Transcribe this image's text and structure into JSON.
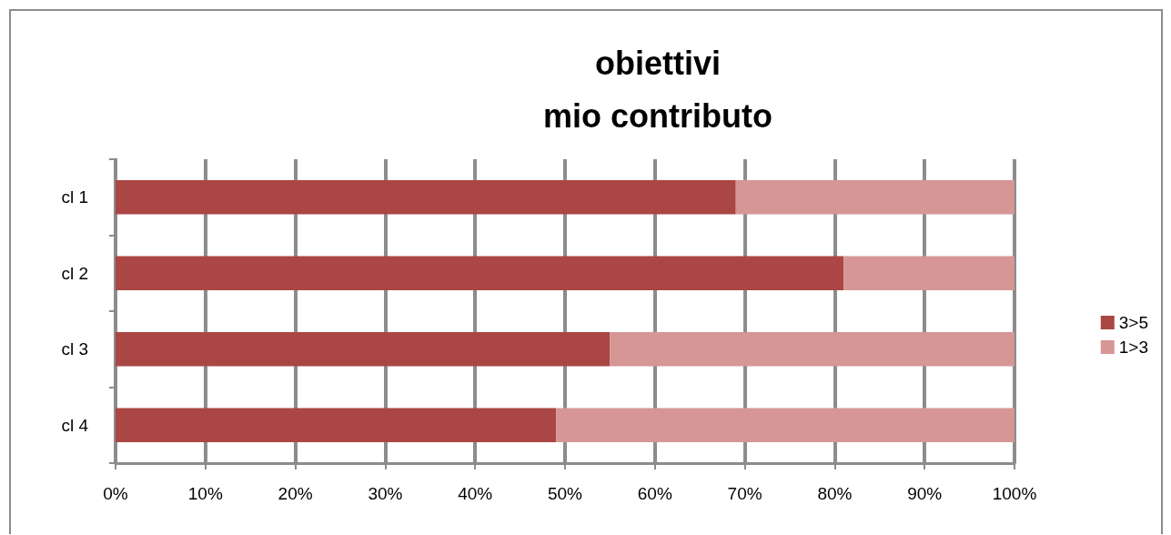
{
  "chart_data": {
    "type": "bar",
    "title": "obiettivi\nmio contributo",
    "orientation": "horizontal",
    "stacked": true,
    "categories": [
      "cl 1",
      "cl 2",
      "cl 3",
      "cl 4"
    ],
    "series": [
      {
        "name": "3>5",
        "color": "#aa4644",
        "values": [
          69,
          81,
          55,
          49
        ]
      },
      {
        "name": "1>3",
        "color": "#d69695",
        "values": [
          31,
          19,
          45,
          51
        ]
      }
    ],
    "xlim": [
      0,
      100
    ],
    "xticks": [
      {
        "value": 0,
        "label": "0%"
      },
      {
        "value": 10,
        "label": "10%"
      },
      {
        "value": 20,
        "label": "20%"
      },
      {
        "value": 30,
        "label": "30%"
      },
      {
        "value": 40,
        "label": "40%"
      },
      {
        "value": 50,
        "label": "50%"
      },
      {
        "value": 60,
        "label": "60%"
      },
      {
        "value": 70,
        "label": "70%"
      },
      {
        "value": 80,
        "label": "80%"
      },
      {
        "value": 90,
        "label": "90%"
      },
      {
        "value": 100,
        "label": "100%"
      }
    ],
    "grid": "x",
    "legend": "right"
  }
}
